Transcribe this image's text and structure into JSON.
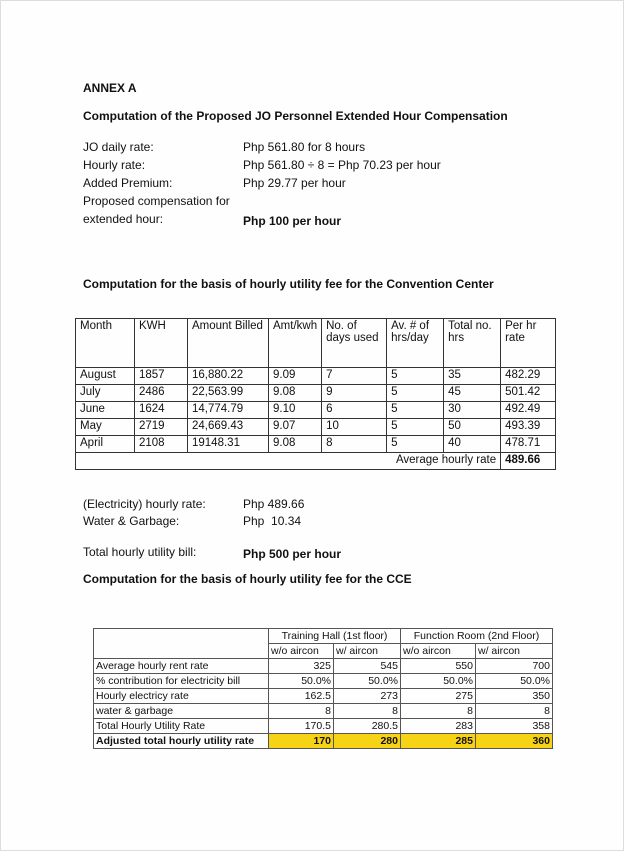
{
  "annex": "ANNEX A",
  "title1": "Computation of the Proposed JO Personnel Extended Hour Compensation",
  "comp": [
    {
      "label": "JO daily rate:",
      "value": "Php 561.80 for 8 hours"
    },
    {
      "label": "Hourly rate:",
      "value": "Php 561.80 ÷ 8 = Php 70.23 per hour"
    },
    {
      "label": "Added Premium:",
      "value": "Php 29.77 per hour"
    },
    {
      "label": "Proposed compensation for",
      "value": ""
    },
    {
      "label": "extended hour:",
      "value": "Php 100 per hour"
    }
  ],
  "title2": "Computation for the basis of hourly utility fee for the Convention Center",
  "table1": {
    "headers": [
      "Month",
      "KWH",
      "Amount Billed",
      "Amt/kwh",
      "No. of days used",
      "Av. # of hrs/day",
      "Total no. hrs",
      "Per hr rate"
    ],
    "rows": [
      [
        "August",
        "1857",
        "16,880.22",
        "9.09",
        "7",
        "5",
        "35",
        "482.29"
      ],
      [
        "July",
        "2486",
        "22,563.99",
        "9.08",
        "9",
        "5",
        "45",
        "501.42"
      ],
      [
        "June",
        "1624",
        "14,774.79",
        "9.10",
        "6",
        "5",
        "30",
        "492.49"
      ],
      [
        "May",
        "2719",
        "24,669.43",
        "9.07",
        "10",
        "5",
        "50",
        "493.39"
      ],
      [
        "April",
        "2108",
        "19148.31",
        "9.08",
        "8",
        "5",
        "40",
        "478.71"
      ]
    ],
    "avg_label": "Average hourly rate",
    "avg_value": "489.66"
  },
  "summary": {
    "elec_label": "(Electricity) hourly rate:",
    "elec_value": "Php 489.66",
    "water_label": "Water & Garbage:",
    "water_value": "Php  10.34",
    "total_label": "Total hourly utility bill:",
    "total_value": "Php 500 per hour"
  },
  "title3": "Computation for the basis of hourly utility fee for the CCE",
  "table2": {
    "groups": [
      "Training Hall (1st floor)",
      "Function Room (2nd Floor)"
    ],
    "subheaders": [
      "w/o aircon",
      "w/ aircon",
      "w/o aircon",
      "w/ aircon"
    ],
    "rows": [
      [
        "Average hourly rent rate",
        "325",
        "545",
        "550",
        "700"
      ],
      [
        "% contribution for electricity bill",
        "50.0%",
        "50.0%",
        "50.0%",
        "50.0%"
      ],
      [
        "Hourly electricy rate",
        "162.5",
        "273",
        "275",
        "350"
      ],
      [
        "water & garbage",
        "8",
        "8",
        "8",
        "8"
      ],
      [
        "Total Hourly Utility Rate",
        "170.5",
        "280.5",
        "283",
        "358"
      ],
      [
        "Adjusted total hourly utility rate",
        "170",
        "280",
        "285",
        "360"
      ]
    ],
    "highlight_color": "#f7d316"
  }
}
